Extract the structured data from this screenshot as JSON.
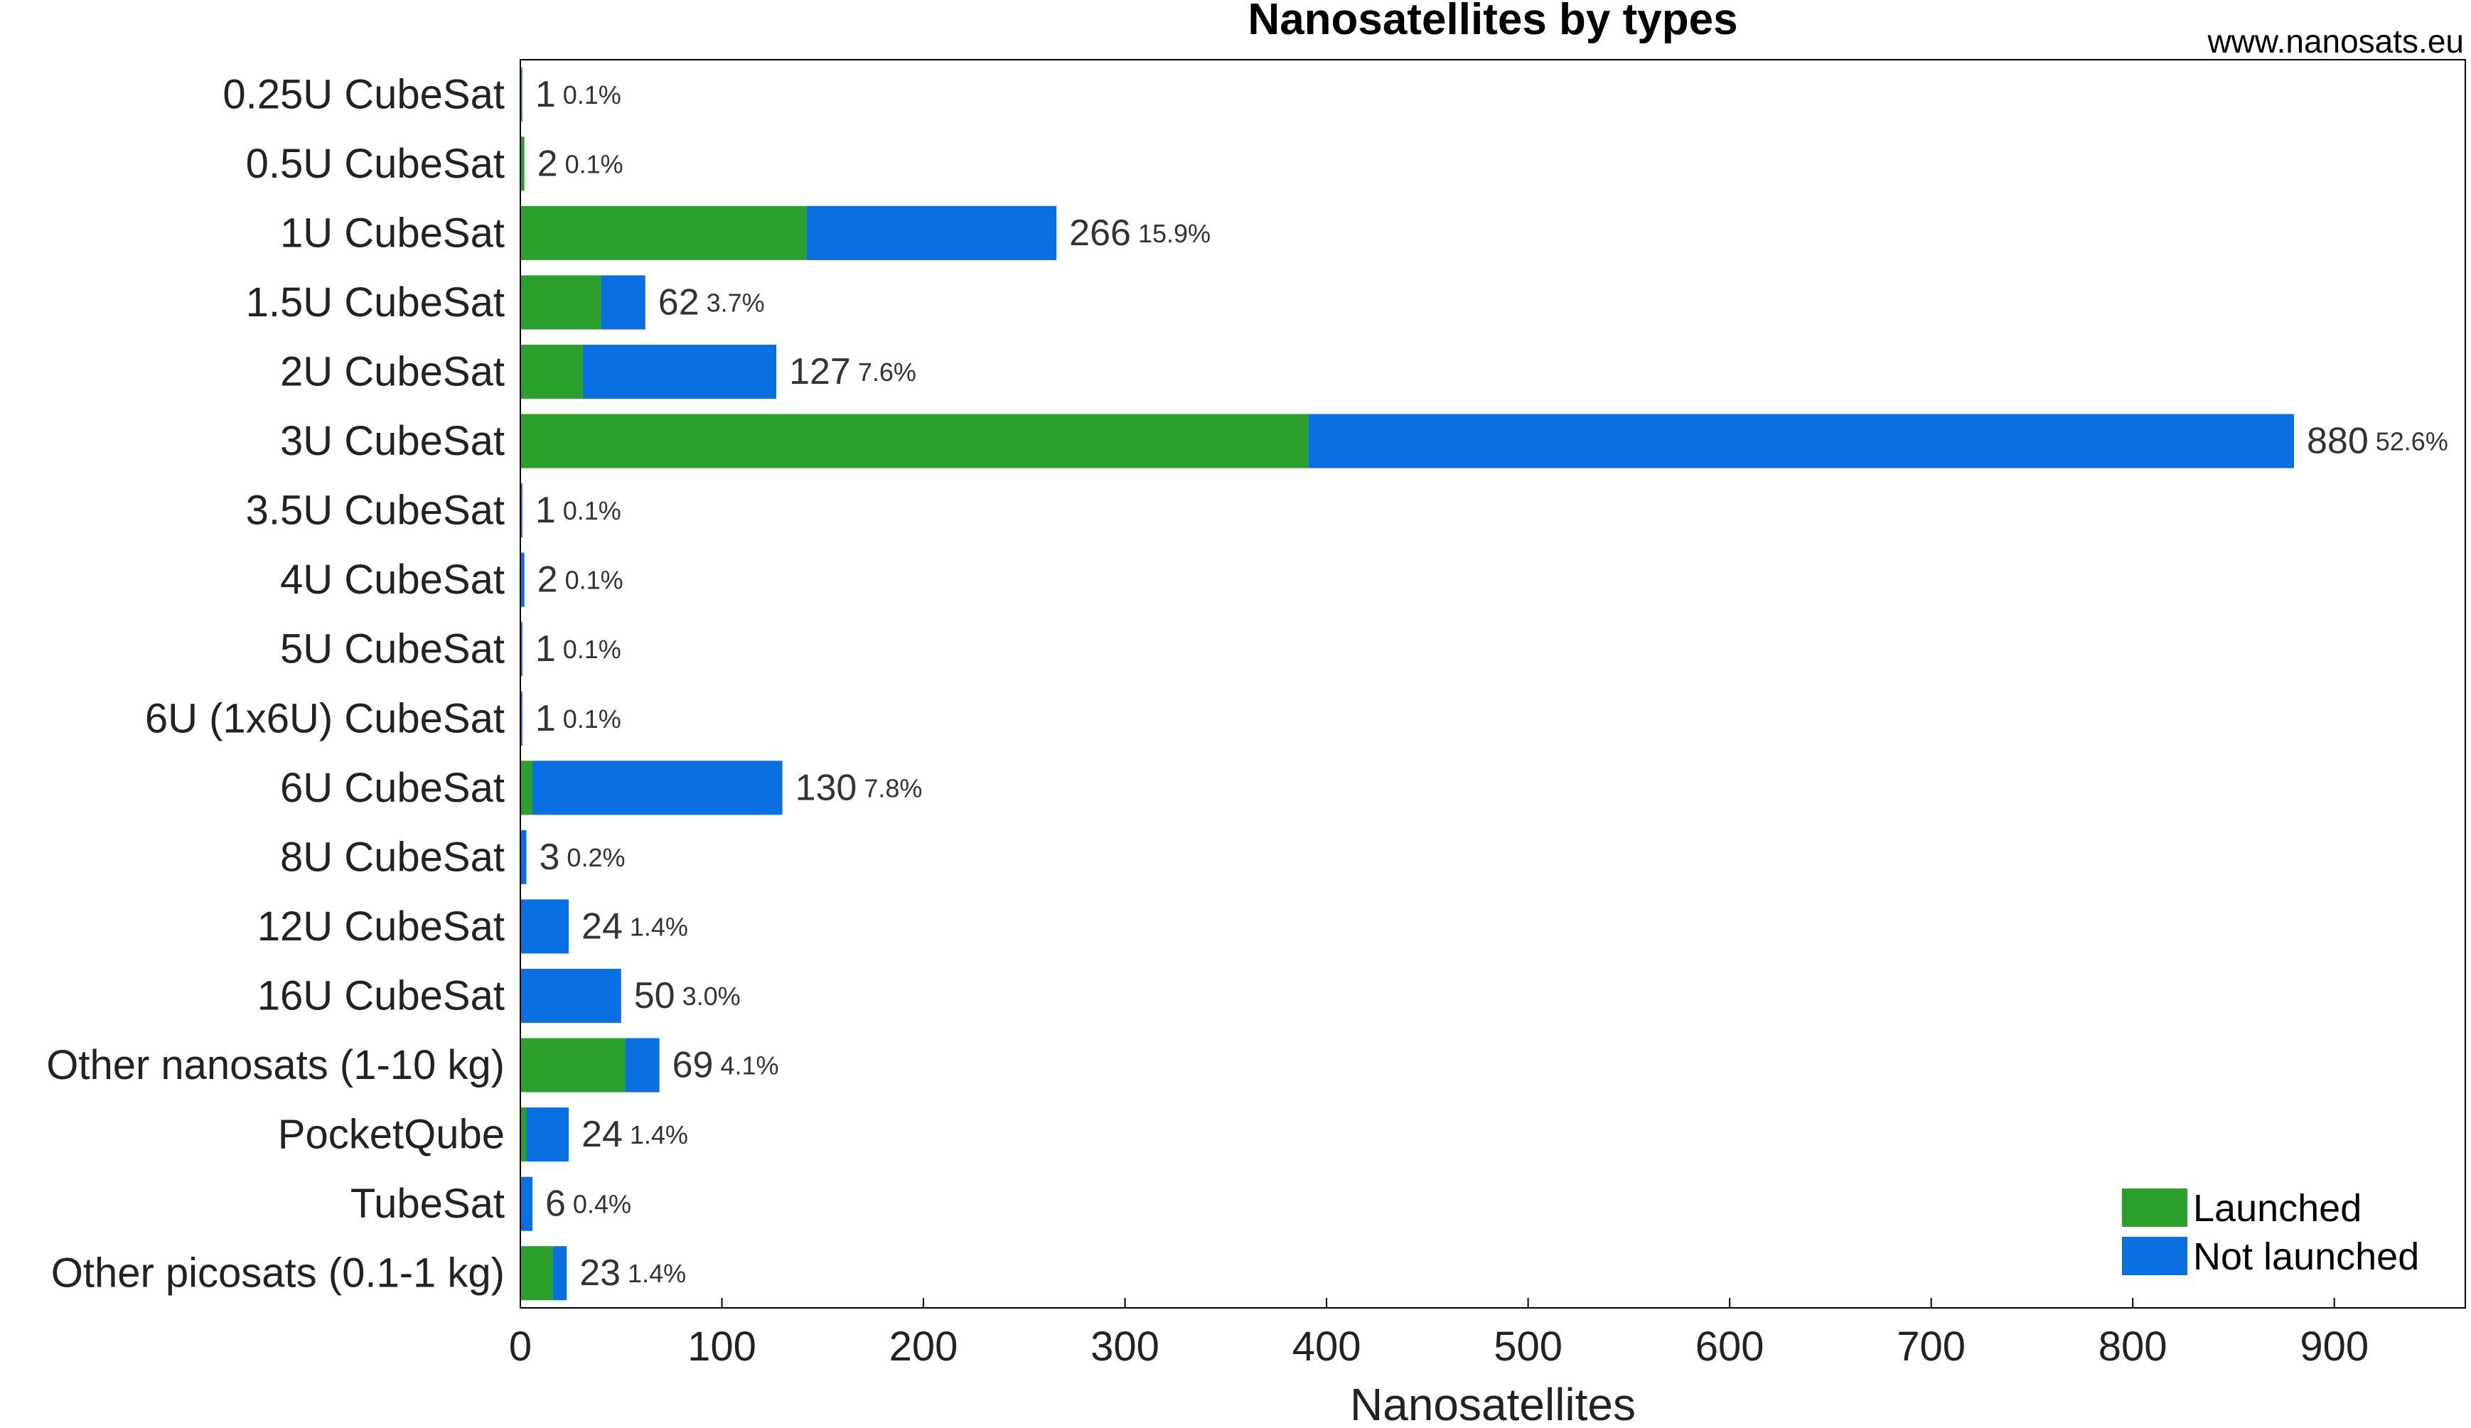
{
  "chart_data": {
    "type": "bar",
    "orientation": "horizontal",
    "stacked": true,
    "title": "Nanosatellites by types",
    "watermark": "www.nanosats.eu",
    "xlabel": "Nanosatellites",
    "ylabel": "",
    "xlim": [
      0,
      965
    ],
    "xticks": [
      0,
      100,
      200,
      300,
      400,
      500,
      600,
      700,
      800,
      900
    ],
    "grid": false,
    "legend_position": "bottom-right",
    "categories": [
      "0.25U CubeSat",
      "0.5U CubeSat",
      "1U CubeSat",
      "1.5U CubeSat",
      "2U CubeSat",
      "3U CubeSat",
      "3.5U CubeSat",
      "4U CubeSat",
      "5U CubeSat",
      "6U (1x6U) CubeSat",
      "6U CubeSat",
      "8U CubeSat",
      "12U CubeSat",
      "16U CubeSat",
      "Other nanosats (1-10 kg)",
      "PocketQube",
      "TubeSat",
      "Other picosats (0.1-1 kg)"
    ],
    "series": [
      {
        "name": "Launched",
        "color": "#2ca02c",
        "values": [
          1,
          2,
          142,
          40,
          31,
          391,
          0,
          0,
          0,
          0,
          6,
          0,
          0,
          0,
          52,
          3,
          0,
          16
        ]
      },
      {
        "name": "Not launched",
        "color": "#0a6fe0",
        "values": [
          0,
          0,
          124,
          22,
          96,
          489,
          1,
          2,
          1,
          1,
          124,
          3,
          24,
          50,
          17,
          21,
          6,
          7
        ]
      }
    ],
    "totals": [
      "1",
      "2",
      "266",
      "62",
      "127",
      "880",
      "1",
      "2",
      "1",
      "1",
      "130",
      "3",
      "24",
      "50",
      "69",
      "24",
      "6",
      "23"
    ],
    "percents": [
      "0.1%",
      "0.1%",
      "15.9%",
      "3.7%",
      "7.6%",
      "52.6%",
      "0.1%",
      "0.1%",
      "0.1%",
      "0.1%",
      "7.8%",
      "0.2%",
      "1.4%",
      "3.0%",
      "4.1%",
      "1.4%",
      "0.4%",
      "1.4%"
    ]
  }
}
